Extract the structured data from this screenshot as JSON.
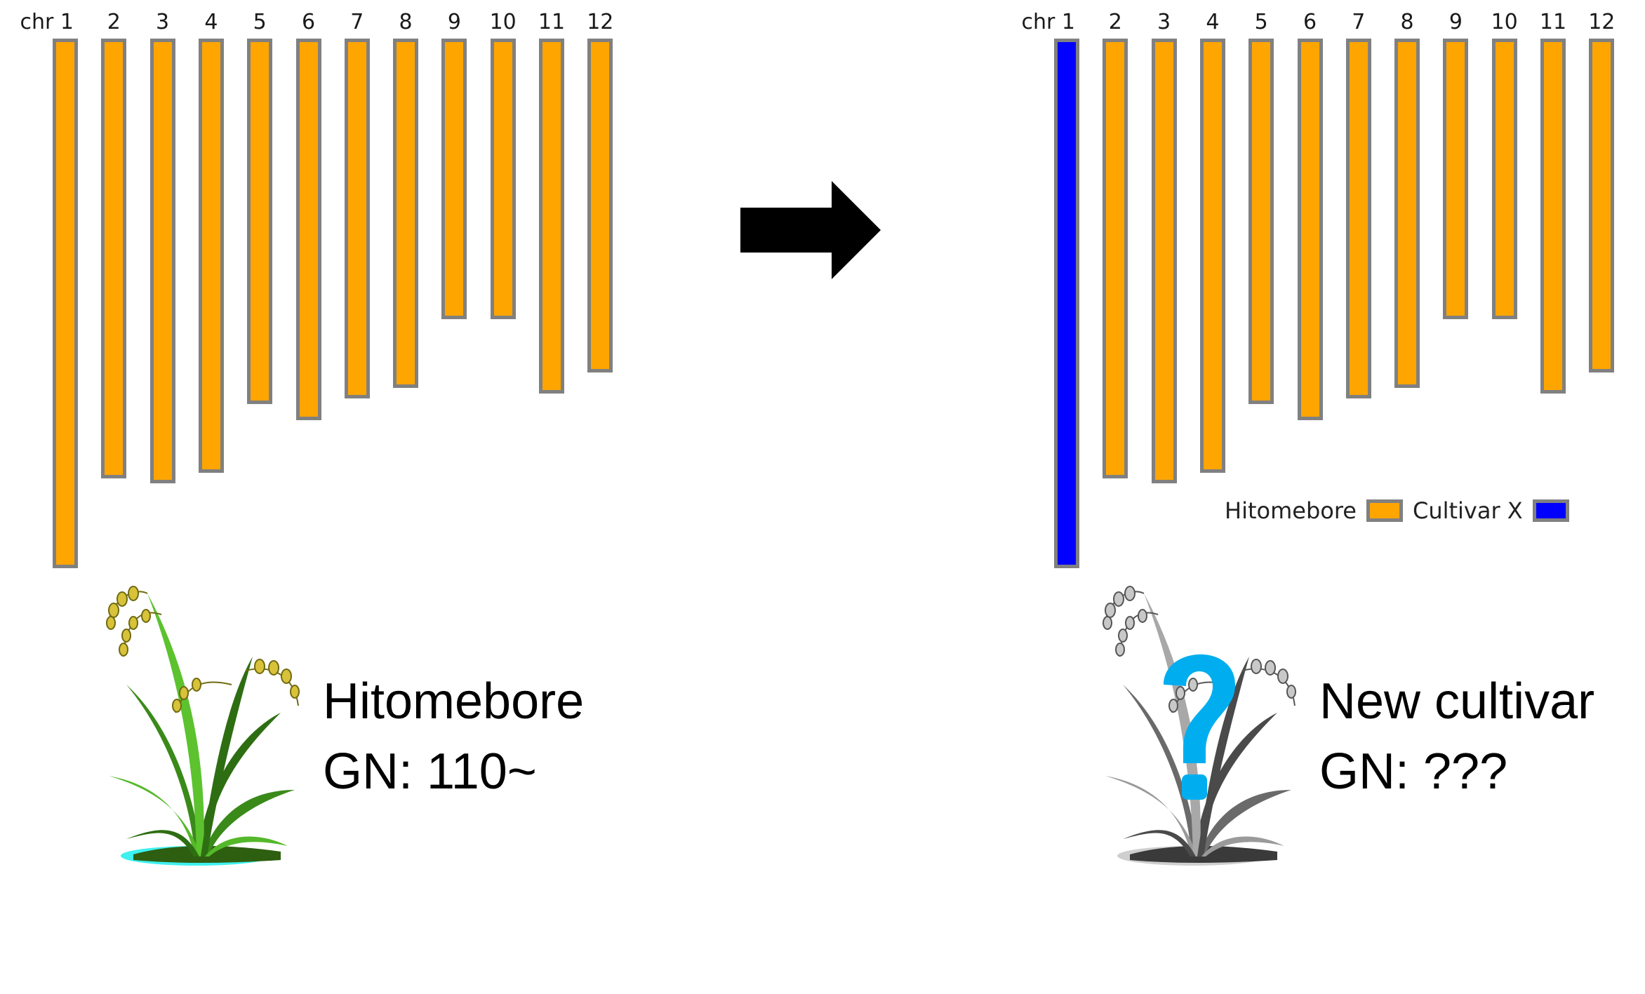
{
  "colors": {
    "hitomebore": "#FFA500",
    "cultivar_x": "#0000FF",
    "bar_border": "#808080",
    "question_mark": "#00AEEF"
  },
  "chromosome_prefix": "chr",
  "chromosomes": [
    {
      "label": "1",
      "length": 1.0
    },
    {
      "label": "2",
      "length": 0.83
    },
    {
      "label": "3",
      "length": 0.84
    },
    {
      "label": "4",
      "length": 0.82
    },
    {
      "label": "5",
      "length": 0.69
    },
    {
      "label": "6",
      "length": 0.72
    },
    {
      "label": "7",
      "length": 0.68
    },
    {
      "label": "8",
      "length": 0.66
    },
    {
      "label": "9",
      "length": 0.53
    },
    {
      "label": "10",
      "length": 0.53
    },
    {
      "label": "11",
      "length": 0.67
    },
    {
      "label": "12",
      "length": 0.63
    }
  ],
  "left_panel": {
    "bar_colors": [
      "hitomebore",
      "hitomebore",
      "hitomebore",
      "hitomebore",
      "hitomebore",
      "hitomebore",
      "hitomebore",
      "hitomebore",
      "hitomebore",
      "hitomebore",
      "hitomebore",
      "hitomebore"
    ],
    "caption_line1": "Hitomebore",
    "caption_line2": "GN: 110~"
  },
  "right_panel": {
    "bar_colors": [
      "cultivar_x",
      "hitomebore",
      "hitomebore",
      "hitomebore",
      "hitomebore",
      "hitomebore",
      "hitomebore",
      "hitomebore",
      "hitomebore",
      "hitomebore",
      "hitomebore",
      "hitomebore"
    ],
    "caption_line1": "New cultivar",
    "caption_line2": "GN: ???",
    "legend": [
      {
        "label": "Hitomebore",
        "color_key": "hitomebore"
      },
      {
        "label": "Cultivar X",
        "color_key": "cultivar_x"
      }
    ]
  },
  "icons": {
    "arrow": "right-arrow-icon",
    "left_plant": "rice-plant-icon",
    "right_plant": "rice-plant-grey-icon",
    "question": "question-mark-icon"
  }
}
